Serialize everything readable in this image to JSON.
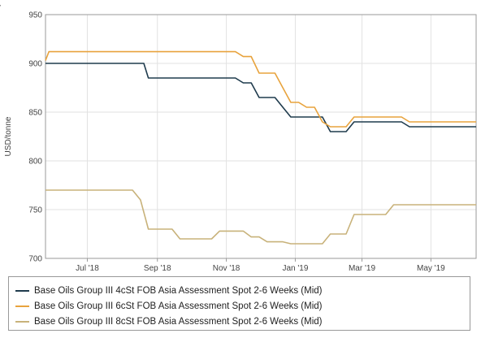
{
  "corner_mark": "'",
  "chart_data": {
    "type": "line",
    "title": "",
    "xlabel": "",
    "ylabel": "USD/tonne",
    "ylim": [
      700,
      950
    ],
    "yticks": [
      700,
      750,
      800,
      850,
      900,
      950
    ],
    "xticks": [
      {
        "label": "Jul '18",
        "date": "2018-07-01"
      },
      {
        "label": "Sep '18",
        "date": "2018-09-01"
      },
      {
        "label": "Nov '18",
        "date": "2018-11-01"
      },
      {
        "label": "Jan '19",
        "date": "2019-01-01"
      },
      {
        "label": "Mar '19",
        "date": "2019-03-01"
      },
      {
        "label": "May '19",
        "date": "2019-05-01"
      }
    ],
    "xlim": [
      "2018-05-25",
      "2019-06-10"
    ],
    "grid": true,
    "legend_position": "bottom",
    "series": [
      {
        "name": "Base Oils Group III 4cSt FOB Asia Assessment Spot 2-6 Weeks (Mid)",
        "color": "#1f3b4d",
        "points": [
          [
            "2018-05-25",
            900
          ],
          [
            "2018-08-20",
            900
          ],
          [
            "2018-08-24",
            885
          ],
          [
            "2018-11-09",
            885
          ],
          [
            "2018-11-16",
            880
          ],
          [
            "2018-11-23",
            880
          ],
          [
            "2018-11-30",
            865
          ],
          [
            "2018-12-14",
            865
          ],
          [
            "2018-12-21",
            855
          ],
          [
            "2018-12-28",
            845
          ],
          [
            "2019-01-25",
            845
          ],
          [
            "2019-02-01",
            830
          ],
          [
            "2019-02-15",
            830
          ],
          [
            "2019-02-22",
            840
          ],
          [
            "2019-04-05",
            840
          ],
          [
            "2019-04-12",
            835
          ],
          [
            "2019-06-10",
            835
          ]
        ]
      },
      {
        "name": "Base Oils Group III 6cSt FOB Asia Assessment Spot 2-6 Weeks (Mid)",
        "color": "#e8a33d",
        "points": [
          [
            "2018-05-25",
            903
          ],
          [
            "2018-05-28",
            912
          ],
          [
            "2018-11-09",
            912
          ],
          [
            "2018-11-16",
            907
          ],
          [
            "2018-11-23",
            907
          ],
          [
            "2018-11-30",
            890
          ],
          [
            "2018-12-14",
            890
          ],
          [
            "2018-12-21",
            875
          ],
          [
            "2018-12-28",
            860
          ],
          [
            "2019-01-04",
            860
          ],
          [
            "2019-01-11",
            855
          ],
          [
            "2019-01-18",
            855
          ],
          [
            "2019-01-25",
            840
          ],
          [
            "2019-02-01",
            835
          ],
          [
            "2019-02-15",
            835
          ],
          [
            "2019-02-22",
            845
          ],
          [
            "2019-04-05",
            845
          ],
          [
            "2019-04-12",
            840
          ],
          [
            "2019-06-10",
            840
          ]
        ]
      },
      {
        "name": "Base Oils Group III 8cSt FOB Asia Assessment Spot 2-6 Weeks (Mid)",
        "color": "#c8b27a",
        "points": [
          [
            "2018-05-25",
            770
          ],
          [
            "2018-08-10",
            770
          ],
          [
            "2018-08-17",
            760
          ],
          [
            "2018-08-24",
            730
          ],
          [
            "2018-09-14",
            730
          ],
          [
            "2018-09-21",
            720
          ],
          [
            "2018-10-19",
            720
          ],
          [
            "2018-10-26",
            728
          ],
          [
            "2018-11-16",
            728
          ],
          [
            "2018-11-23",
            722
          ],
          [
            "2018-11-30",
            722
          ],
          [
            "2018-12-07",
            717
          ],
          [
            "2018-12-21",
            717
          ],
          [
            "2018-12-28",
            715
          ],
          [
            "2019-01-25",
            715
          ],
          [
            "2019-02-01",
            725
          ],
          [
            "2019-02-15",
            725
          ],
          [
            "2019-02-22",
            745
          ],
          [
            "2019-03-22",
            745
          ],
          [
            "2019-03-29",
            755
          ],
          [
            "2019-06-10",
            755
          ]
        ]
      }
    ]
  }
}
